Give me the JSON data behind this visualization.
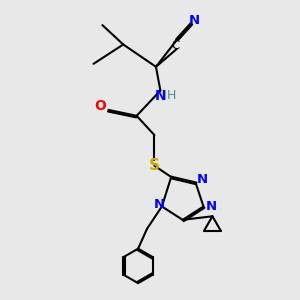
{
  "background_color": "#e8e8e8",
  "atom_colors": {
    "C": "#000000",
    "N": "#0000ff",
    "O": "#ff0000",
    "S": "#ccaa00",
    "H": "#4a9090",
    "CN_label": "#0000cc"
  },
  "figsize": [
    3.0,
    3.0
  ],
  "dpi": 100
}
